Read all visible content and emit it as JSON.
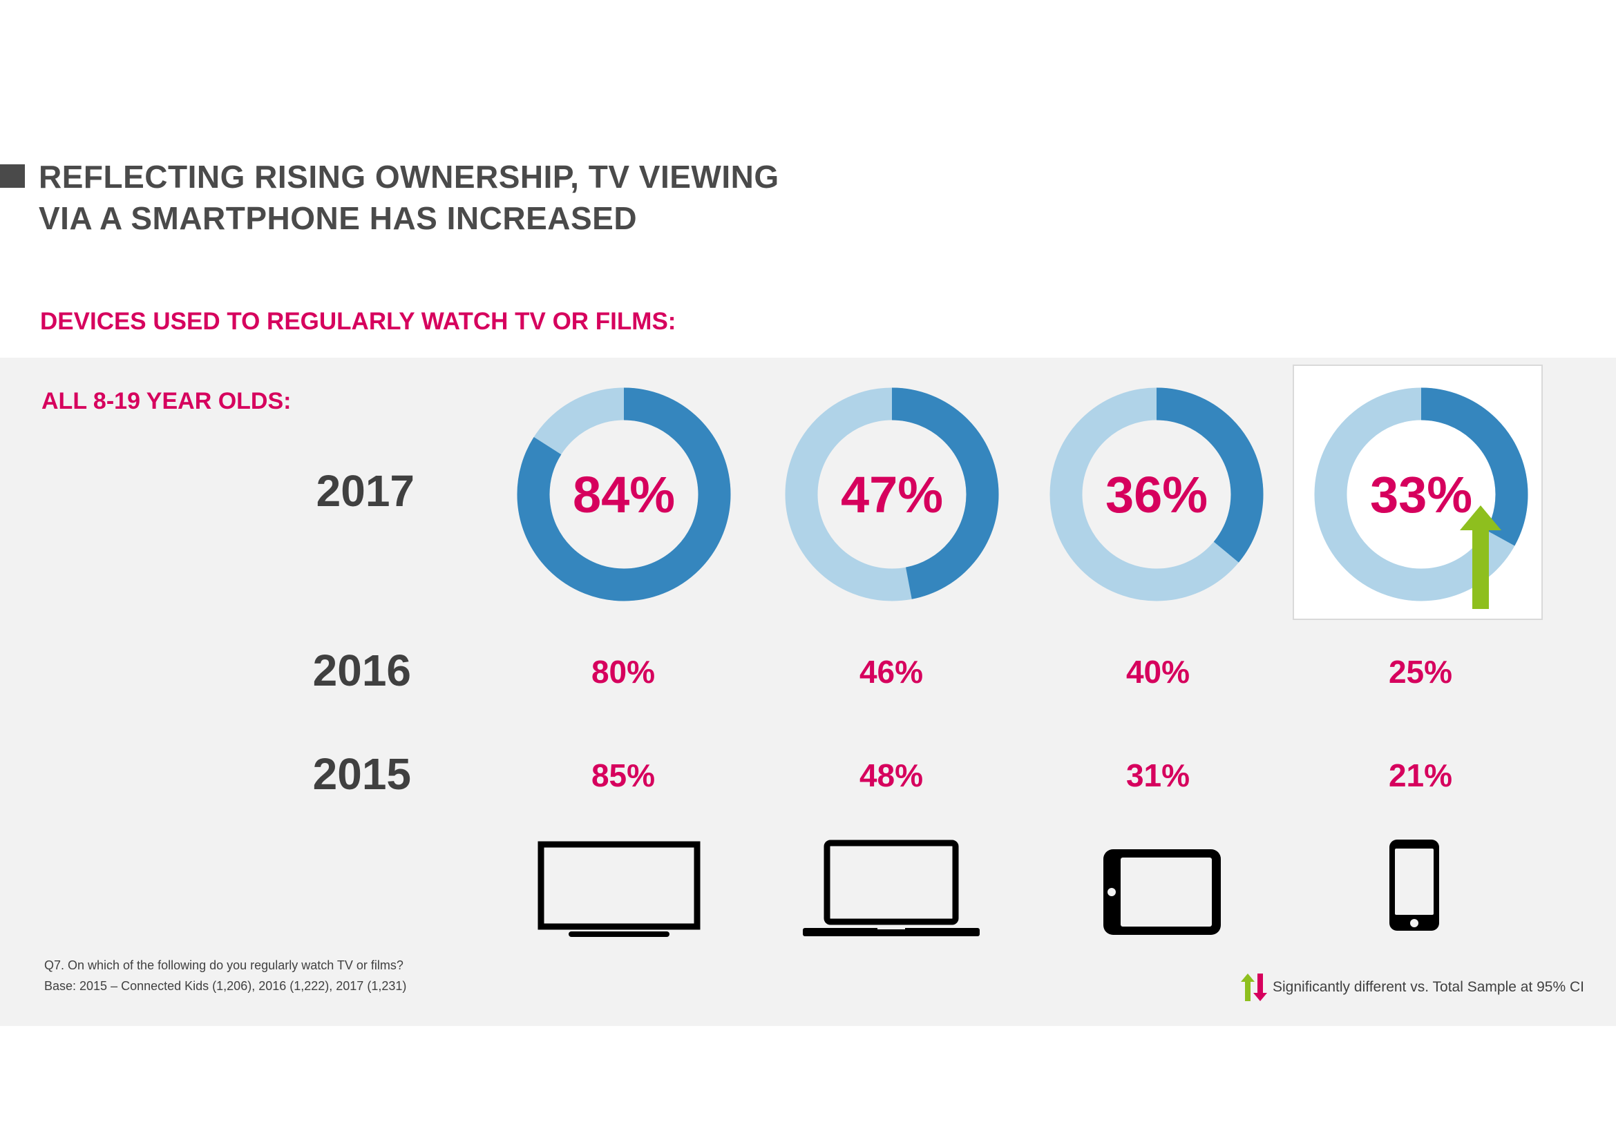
{
  "header": {
    "title_line1": "REFLECTING RISING OWNERSHIP, TV VIEWING",
    "title_line2": "VIA A SMARTPHONE HAS INCREASED",
    "subtitle": "DEVICES USED TO REGULARLY WATCH TV OR FILMS:"
  },
  "colors": {
    "accent": "#d6005d",
    "donut_fill": "#3586be",
    "donut_track": "#b0d3e8",
    "up_arrow": "#8ebf1e",
    "down_arrow": "#d6005d",
    "panel": "#f2f2f2"
  },
  "chart_data": {
    "type": "donut",
    "group_label": "ALL 8-19 YEAR OLDS:",
    "categories": [
      "TV set",
      "Laptop",
      "Tablet",
      "Smartphone"
    ],
    "icons": [
      "tv-icon",
      "laptop-icon",
      "tablet-icon",
      "smartphone-icon"
    ],
    "years": [
      "2017",
      "2016",
      "2015"
    ],
    "series": [
      {
        "name": "2017",
        "values": [
          84,
          47,
          36,
          33
        ],
        "labels": [
          "84%",
          "47%",
          "36%",
          "33%"
        ]
      },
      {
        "name": "2016",
        "values": [
          80,
          46,
          40,
          25
        ],
        "labels": [
          "80%",
          "46%",
          "40%",
          "25%"
        ]
      },
      {
        "name": "2015",
        "values": [
          85,
          48,
          31,
          21
        ],
        "labels": [
          "85%",
          "48%",
          "31%",
          "21%"
        ]
      }
    ],
    "significant_up": [
      "Smartphone"
    ],
    "unit": "%"
  },
  "footer": {
    "question": "Q7. On which of the following do you regularly watch TV or films?",
    "base": "Base: 2015 – Connected Kids (1,206), 2016 (1,222), 2017 (1,231)",
    "legend": "Significantly different vs. Total Sample at 95% CI"
  }
}
